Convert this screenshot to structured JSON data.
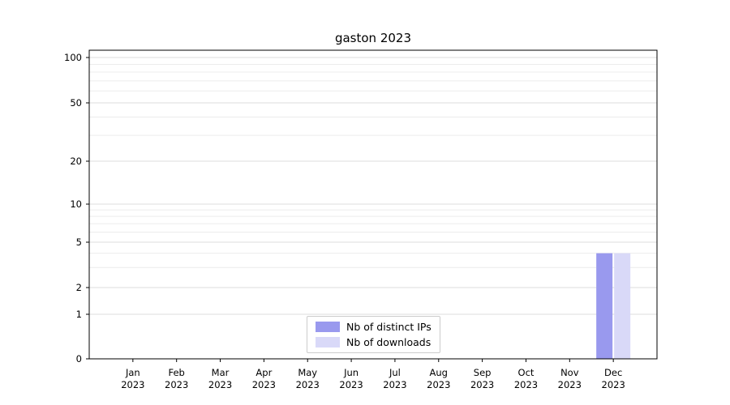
{
  "chart_data": {
    "type": "bar",
    "title": "gaston 2023",
    "categories": [
      "Jan",
      "Feb",
      "Mar",
      "Apr",
      "May",
      "Jun",
      "Jul",
      "Aug",
      "Sep",
      "Oct",
      "Nov",
      "Dec"
    ],
    "year": "2023",
    "series": [
      {
        "name": "Nb of distinct IPs",
        "color": "#9999ee",
        "values": [
          0,
          0,
          0,
          0,
          0,
          0,
          0,
          0,
          0,
          0,
          0,
          4
        ]
      },
      {
        "name": "Nb of downloads",
        "color": "#d9d9f8",
        "values": [
          0,
          0,
          0,
          0,
          0,
          0,
          0,
          0,
          0,
          0,
          0,
          4
        ]
      }
    ],
    "xlabel": "",
    "ylabel": "",
    "y_ticks": [
      0,
      1,
      2,
      5,
      10,
      20,
      50,
      100
    ],
    "y_minor_gridlines": [
      3,
      4,
      6,
      7,
      8,
      9,
      30,
      40,
      60,
      70,
      80,
      90
    ],
    "scale": "log",
    "ylim": [
      0,
      110
    ],
    "grid": true,
    "legend_position": "lower center inside"
  }
}
